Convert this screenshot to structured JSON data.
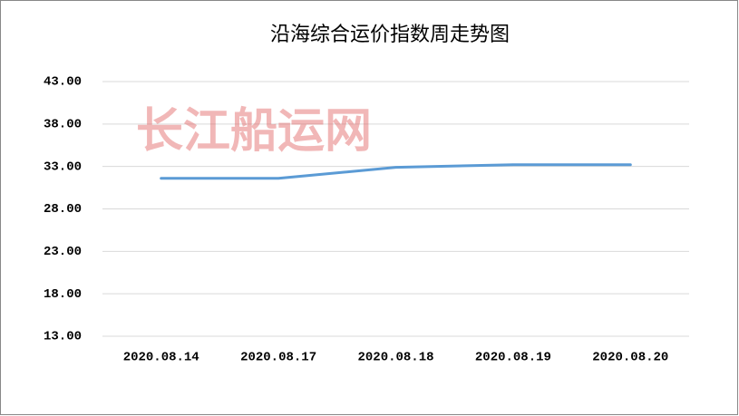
{
  "chart_data": {
    "type": "line",
    "title": "沿海综合运价指数周走势图",
    "watermark": "长江船运网",
    "categories": [
      "2020.08.14",
      "2020.08.17",
      "2020.08.18",
      "2020.08.19",
      "2020.08.20"
    ],
    "values": [
      31.6,
      31.6,
      32.9,
      33.2,
      33.2
    ],
    "color": "#5b9bd5",
    "ylim": [
      13,
      43
    ],
    "yticks": [
      {
        "value": 13,
        "label": "13.00"
      },
      {
        "value": 18,
        "label": "18.00"
      },
      {
        "value": 23,
        "label": "23.00"
      },
      {
        "value": 28,
        "label": "28.00"
      },
      {
        "value": 33,
        "label": "33.00"
      },
      {
        "value": 38,
        "label": "38.00"
      },
      {
        "value": 43,
        "label": "43.00"
      }
    ],
    "grid": true
  }
}
